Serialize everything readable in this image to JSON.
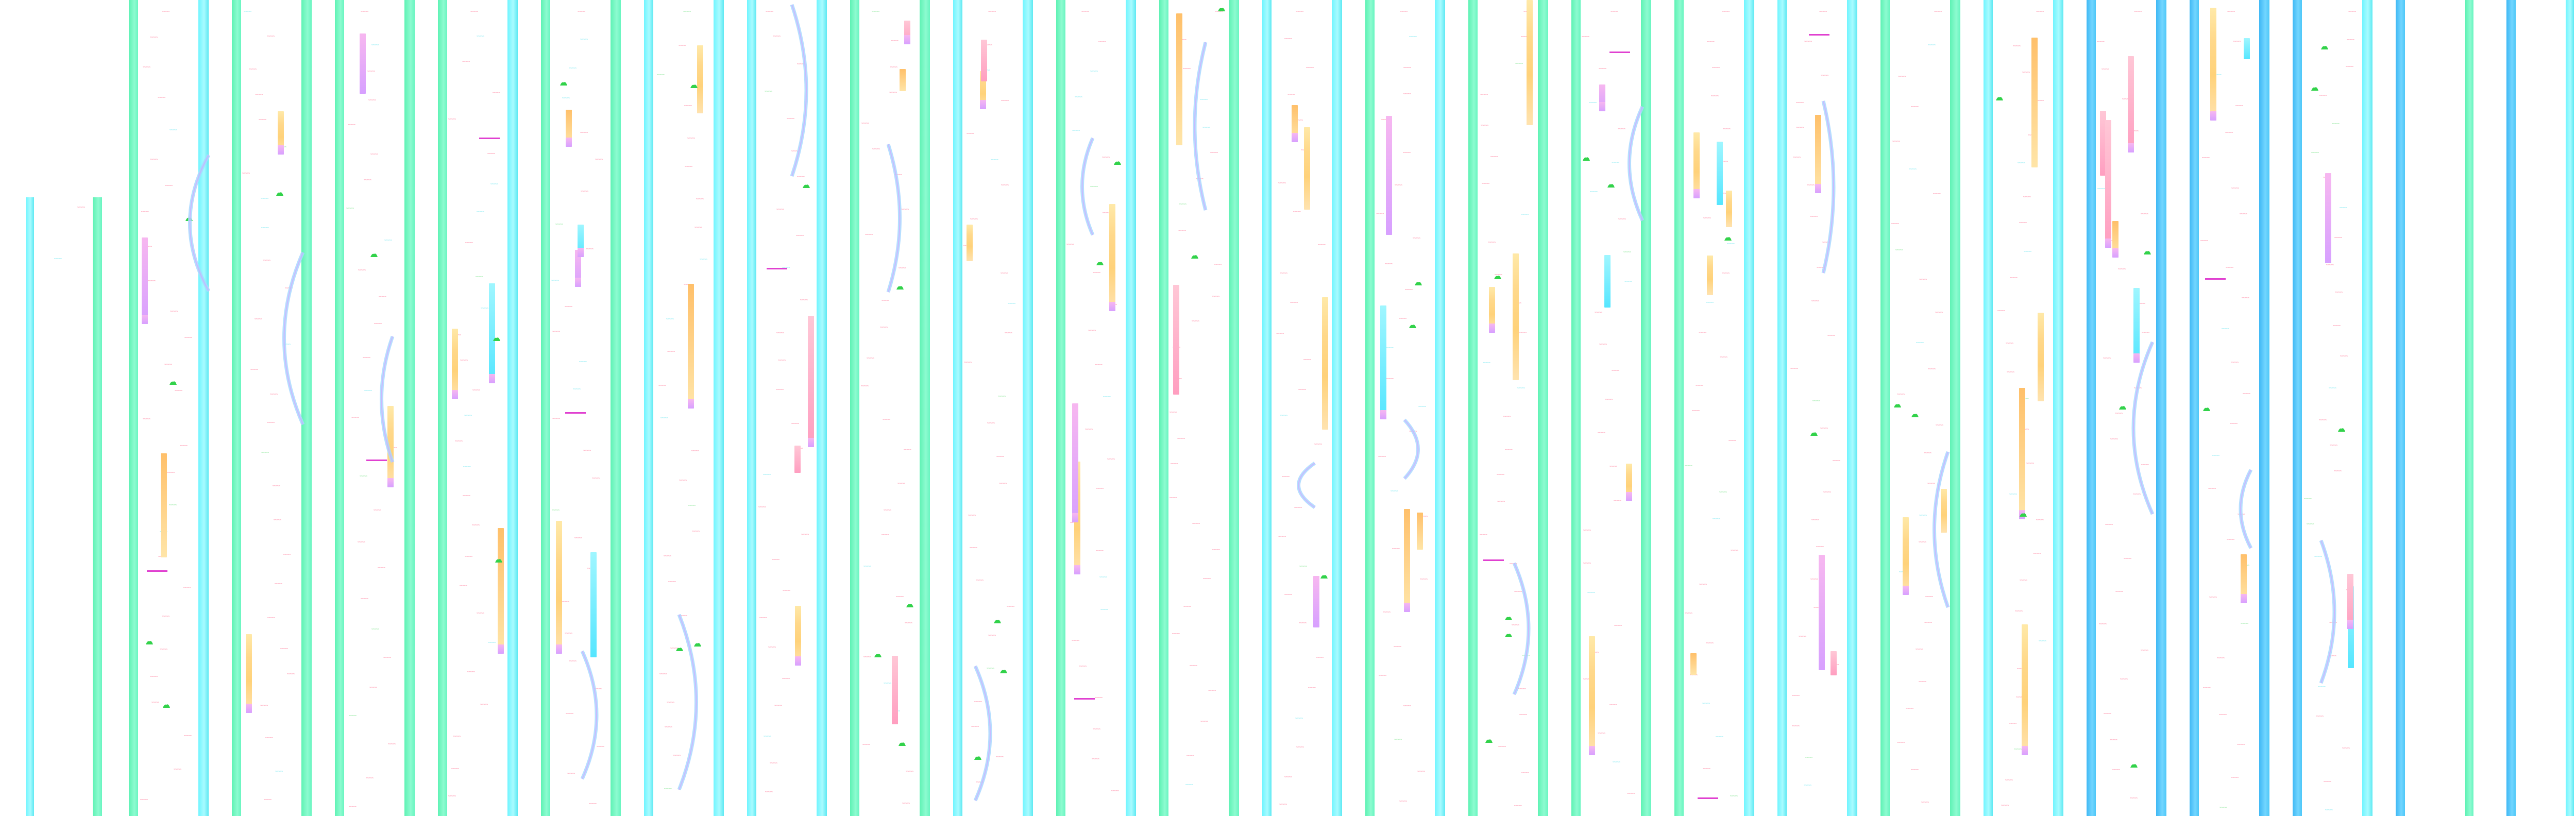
{
  "screen": {
    "title": "",
    "background": "#ffffff",
    "colors": {
      "rail_green": "#5ef2b4",
      "rail_cyan": "#6ff5ff",
      "rail_blue": "#3fb8f5",
      "label_red": "#ff2a5a",
      "label_cyan": "#1fd7e6",
      "blob_green": "#32d24a",
      "bar_yellow": "#ffd88a",
      "bar_orange": "#ffc06a",
      "bar_purple": "#d7a0ff",
      "arc_blue": "#a9d8ff",
      "marker_magenta": "#e040d0"
    }
  },
  "icons": {
    "blob": "green-blob-icon",
    "marker": "magenta-marker-icon",
    "arc": "ribbon-arc-icon"
  },
  "label_text": "~~~~~",
  "note": ""
}
